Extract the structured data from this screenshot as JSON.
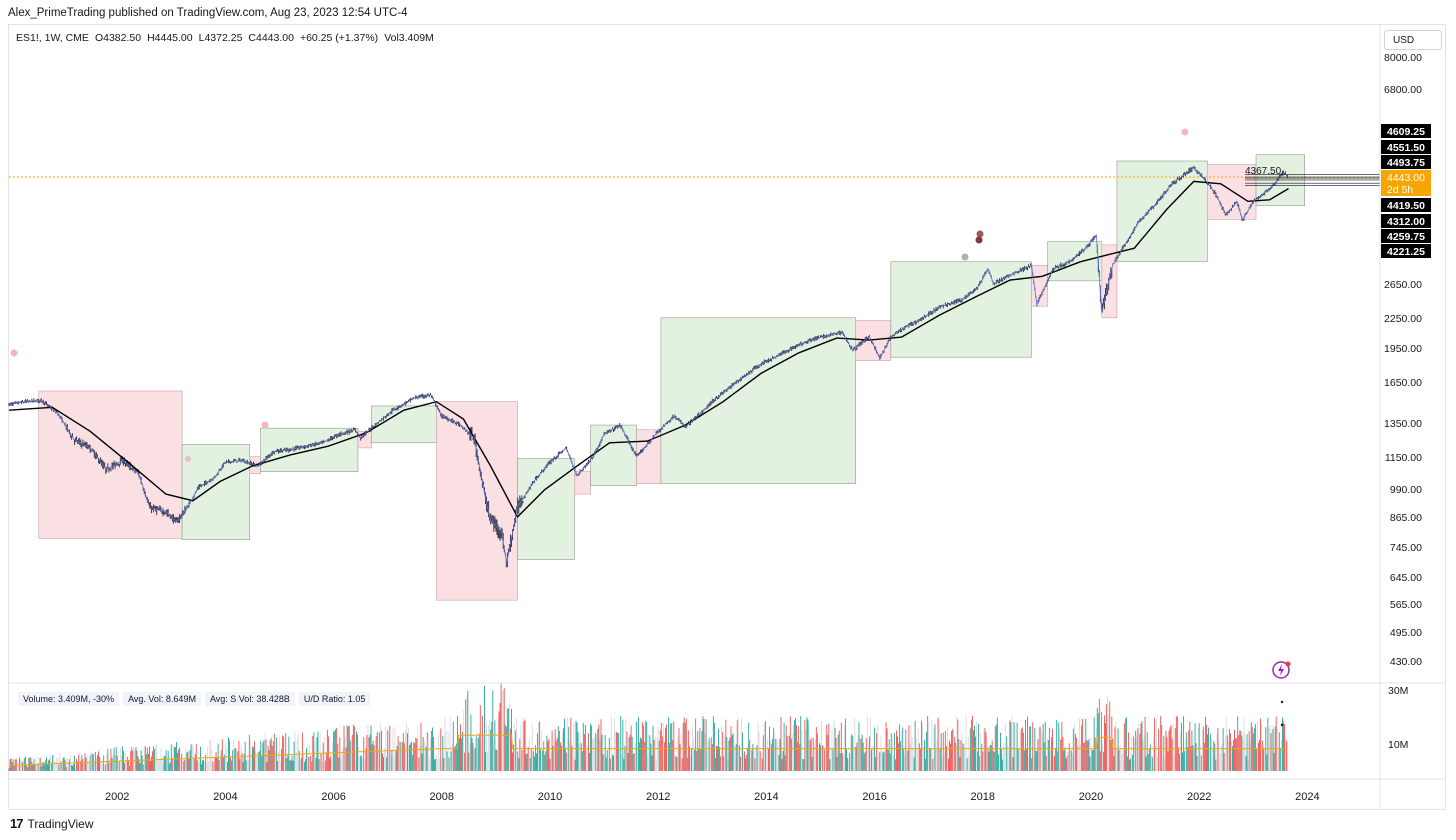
{
  "header": {
    "publisher_line": "Alex_PrimeTrading published on TradingView.com, Aug 23, 2023 12:54 UTC-4"
  },
  "symbol_legend": {
    "symbol": "ES1!, 1W, CME",
    "open": "O4382.50",
    "high": "H4445.00",
    "low": "L4372.25",
    "close": "C4443.00",
    "change": "+60.25 (+1.37%)",
    "volume": "Vol3.409M"
  },
  "currency_button": "USD",
  "volume_legend": {
    "volume": "Volume: 3.409M, -30%",
    "avg_vol": "Avg. Vol: 8.649M",
    "avg_s_vol": "Avg: S Vol: 38.428B",
    "ud_ratio": "U/D Ratio: 1.05"
  },
  "footer": {
    "logo": "17",
    "brand": "TradingView"
  },
  "colors": {
    "green_zone": "#e3f1e0",
    "red_zone": "#fbe0e3",
    "price_line": "#f7a600",
    "up_bar": "#26a69a",
    "down_bar": "#ef5350",
    "ma_line": "#000000",
    "ma_fast": "#5b6ee1"
  },
  "chart_data": {
    "type": "line",
    "title": "ES1!, 1W, CME",
    "x_ticks": [
      "2002",
      "2004",
      "2006",
      "2008",
      "2010",
      "2012",
      "2014",
      "2016",
      "2018",
      "2020",
      "2022",
      "2024"
    ],
    "y_scale": "log",
    "y_ticks": [
      "8000.00",
      "6800.00",
      "2650.00",
      "2250.00",
      "1950.00",
      "1650.00",
      "1350.00",
      "1150.00",
      "990.00",
      "865.00",
      "745.00",
      "645.00",
      "565.00",
      "495.00",
      "430.00"
    ],
    "price_labels": [
      {
        "value": "4609.25",
        "kind": "black"
      },
      {
        "value": "4551.50",
        "kind": "black"
      },
      {
        "value": "4493.75",
        "kind": "black"
      },
      {
        "value": "4443.00",
        "kind": "orange"
      },
      {
        "value": "2d 5h",
        "kind": "orange"
      },
      {
        "value": "4419.50",
        "kind": "black"
      },
      {
        "value": "4312.00",
        "kind": "black"
      },
      {
        "value": "4259.75",
        "kind": "black"
      },
      {
        "value": "4221.25",
        "kind": "black"
      }
    ],
    "annotation_text": "4367.50",
    "volume_axis": [
      "30M",
      "10M"
    ],
    "price_series": [
      [
        2000.0,
        1480
      ],
      [
        2000.3,
        1500
      ],
      [
        2000.6,
        1510
      ],
      [
        2000.9,
        1420
      ],
      [
        2001.2,
        1250
      ],
      [
        2001.5,
        1200
      ],
      [
        2001.8,
        1080
      ],
      [
        2002.1,
        1130
      ],
      [
        2002.4,
        1060
      ],
      [
        2002.6,
        900
      ],
      [
        2002.9,
        880
      ],
      [
        2003.1,
        840
      ],
      [
        2003.3,
        900
      ],
      [
        2003.5,
        990
      ],
      [
        2003.8,
        1040
      ],
      [
        2004.0,
        1120
      ],
      [
        2004.3,
        1130
      ],
      [
        2004.6,
        1100
      ],
      [
        2004.9,
        1180
      ],
      [
        2005.2,
        1190
      ],
      [
        2005.5,
        1210
      ],
      [
        2005.8,
        1230
      ],
      [
        2006.1,
        1280
      ],
      [
        2006.4,
        1310
      ],
      [
        2006.5,
        1260
      ],
      [
        2006.8,
        1350
      ],
      [
        2007.1,
        1440
      ],
      [
        2007.5,
        1530
      ],
      [
        2007.8,
        1550
      ],
      [
        2008.0,
        1400
      ],
      [
        2008.3,
        1350
      ],
      [
        2008.6,
        1260
      ],
      [
        2008.8,
        950
      ],
      [
        2008.9,
        850
      ],
      [
        2009.1,
        800
      ],
      [
        2009.2,
        690
      ],
      [
        2009.4,
        900
      ],
      [
        2009.7,
        1020
      ],
      [
        2010.0,
        1120
      ],
      [
        2010.3,
        1200
      ],
      [
        2010.5,
        1050
      ],
      [
        2010.8,
        1150
      ],
      [
        2011.0,
        1280
      ],
      [
        2011.3,
        1340
      ],
      [
        2011.6,
        1150
      ],
      [
        2011.8,
        1220
      ],
      [
        2012.0,
        1300
      ],
      [
        2012.3,
        1400
      ],
      [
        2012.5,
        1330
      ],
      [
        2012.8,
        1420
      ],
      [
        2013.0,
        1500
      ],
      [
        2013.3,
        1600
      ],
      [
        2013.6,
        1700
      ],
      [
        2013.9,
        1800
      ],
      [
        2014.2,
        1870
      ],
      [
        2014.5,
        1950
      ],
      [
        2014.8,
        2020
      ],
      [
        2015.1,
        2060
      ],
      [
        2015.4,
        2100
      ],
      [
        2015.6,
        1920
      ],
      [
        2015.9,
        2060
      ],
      [
        2016.1,
        1850
      ],
      [
        2016.3,
        2050
      ],
      [
        2016.6,
        2160
      ],
      [
        2016.9,
        2250
      ],
      [
        2017.2,
        2370
      ],
      [
        2017.6,
        2450
      ],
      [
        2017.9,
        2600
      ],
      [
        2018.1,
        2850
      ],
      [
        2018.2,
        2650
      ],
      [
        2018.6,
        2800
      ],
      [
        2018.9,
        2900
      ],
      [
        2019.0,
        2400
      ],
      [
        2019.3,
        2850
      ],
      [
        2019.6,
        2950
      ],
      [
        2019.9,
        3150
      ],
      [
        2020.1,
        3350
      ],
      [
        2020.2,
        2300
      ],
      [
        2020.4,
        2900
      ],
      [
        2020.7,
        3300
      ],
      [
        2020.9,
        3600
      ],
      [
        2021.2,
        3900
      ],
      [
        2021.5,
        4300
      ],
      [
        2021.9,
        4650
      ],
      [
        2022.1,
        4400
      ],
      [
        2022.3,
        4100
      ],
      [
        2022.5,
        3700
      ],
      [
        2022.7,
        3950
      ],
      [
        2022.8,
        3600
      ],
      [
        2023.0,
        3950
      ],
      [
        2023.2,
        4100
      ],
      [
        2023.4,
        4300
      ],
      [
        2023.55,
        4550
      ],
      [
        2023.65,
        4443
      ]
    ],
    "ma_series": [
      [
        2000.0,
        1440
      ],
      [
        2000.8,
        1460
      ],
      [
        2001.5,
        1300
      ],
      [
        2002.2,
        1120
      ],
      [
        2002.9,
        960
      ],
      [
        2003.4,
        930
      ],
      [
        2003.9,
        1020
      ],
      [
        2004.5,
        1100
      ],
      [
        2005.2,
        1160
      ],
      [
        2005.9,
        1210
      ],
      [
        2006.6,
        1290
      ],
      [
        2007.3,
        1440
      ],
      [
        2007.9,
        1500
      ],
      [
        2008.4,
        1380
      ],
      [
        2008.9,
        1100
      ],
      [
        2009.4,
        860
      ],
      [
        2009.9,
        980
      ],
      [
        2010.5,
        1100
      ],
      [
        2011.1,
        1230
      ],
      [
        2011.8,
        1240
      ],
      [
        2012.5,
        1340
      ],
      [
        2013.2,
        1500
      ],
      [
        2013.9,
        1720
      ],
      [
        2014.6,
        1900
      ],
      [
        2015.3,
        2040
      ],
      [
        2015.9,
        2020
      ],
      [
        2016.5,
        2050
      ],
      [
        2017.2,
        2280
      ],
      [
        2017.9,
        2500
      ],
      [
        2018.5,
        2700
      ],
      [
        2019.1,
        2750
      ],
      [
        2019.8,
        2950
      ],
      [
        2020.3,
        3050
      ],
      [
        2020.8,
        3150
      ],
      [
        2021.4,
        3800
      ],
      [
        2021.9,
        4350
      ],
      [
        2022.4,
        4300
      ],
      [
        2022.9,
        3950
      ],
      [
        2023.3,
        3980
      ],
      [
        2023.65,
        4200
      ]
    ],
    "zones": [
      {
        "x1": 2000.55,
        "x2": 2003.2,
        "y1": 1580,
        "y2": 775,
        "color": "red"
      },
      {
        "x1": 2003.2,
        "x2": 2004.45,
        "y1": 1220,
        "y2": 770,
        "color": "green"
      },
      {
        "x1": 2004.45,
        "x2": 2004.65,
        "y1": 1150,
        "y2": 1060,
        "color": "red"
      },
      {
        "x1": 2004.65,
        "x2": 2006.45,
        "y1": 1320,
        "y2": 1070,
        "color": "green"
      },
      {
        "x1": 2006.45,
        "x2": 2006.7,
        "y1": 1300,
        "y2": 1200,
        "color": "red"
      },
      {
        "x1": 2006.7,
        "x2": 2007.9,
        "y1": 1470,
        "y2": 1230,
        "color": "green"
      },
      {
        "x1": 2007.9,
        "x2": 2009.4,
        "y1": 1500,
        "y2": 575,
        "color": "red"
      },
      {
        "x1": 2009.4,
        "x2": 2010.45,
        "y1": 1140,
        "y2": 700,
        "color": "green"
      },
      {
        "x1": 2010.45,
        "x2": 2010.75,
        "y1": 1070,
        "y2": 960,
        "color": "red"
      },
      {
        "x1": 2010.75,
        "x2": 2011.6,
        "y1": 1340,
        "y2": 1000,
        "color": "green"
      },
      {
        "x1": 2011.6,
        "x2": 2012.05,
        "y1": 1310,
        "y2": 1010,
        "color": "red"
      },
      {
        "x1": 2012.05,
        "x2": 2015.65,
        "y1": 2250,
        "y2": 1010,
        "color": "green"
      },
      {
        "x1": 2015.65,
        "x2": 2016.3,
        "y1": 2220,
        "y2": 1830,
        "color": "red"
      },
      {
        "x1": 2016.3,
        "x2": 2018.9,
        "y1": 2950,
        "y2": 1860,
        "color": "green"
      },
      {
        "x1": 2018.9,
        "x2": 2019.2,
        "y1": 2900,
        "y2": 2380,
        "color": "red"
      },
      {
        "x1": 2019.2,
        "x2": 2020.2,
        "y1": 3250,
        "y2": 2690,
        "color": "green"
      },
      {
        "x1": 2020.2,
        "x2": 2020.48,
        "y1": 3200,
        "y2": 2250,
        "color": "red"
      },
      {
        "x1": 2020.48,
        "x2": 2022.15,
        "y1": 4800,
        "y2": 2950,
        "color": "green"
      },
      {
        "x1": 2022.15,
        "x2": 2023.05,
        "y1": 4720,
        "y2": 3620,
        "color": "red"
      },
      {
        "x1": 2023.05,
        "x2": 2023.95,
        "y1": 4950,
        "y2": 3870,
        "color": "green"
      }
    ]
  }
}
